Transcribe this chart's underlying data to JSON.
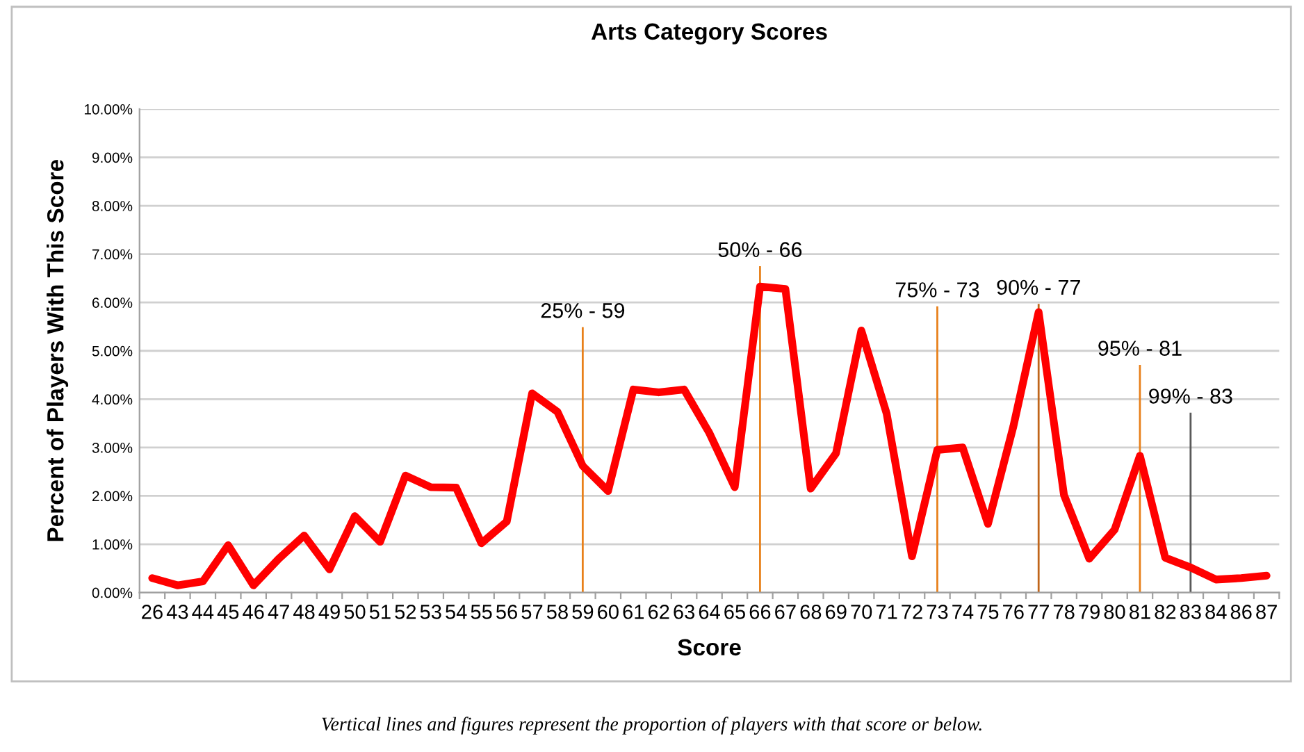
{
  "chart_data": {
    "type": "line",
    "title": "Arts Category Scores",
    "xlabel": "Score",
    "ylabel": "Percent of Players With This Score",
    "categories": [
      "26",
      "43",
      "44",
      "45",
      "46",
      "47",
      "48",
      "49",
      "50",
      "51",
      "52",
      "53",
      "54",
      "55",
      "56",
      "57",
      "58",
      "59",
      "60",
      "61",
      "62",
      "63",
      "64",
      "65",
      "66",
      "67",
      "68",
      "69",
      "70",
      "71",
      "72",
      "73",
      "74",
      "75",
      "76",
      "77",
      "78",
      "79",
      "80",
      "81",
      "82",
      "83",
      "84",
      "86",
      "87"
    ],
    "series": [
      {
        "color": "#ff0000",
        "values": [
          0.3,
          0.15,
          0.23,
          0.98,
          0.15,
          0.7,
          1.18,
          0.48,
          1.58,
          1.05,
          2.42,
          2.18,
          2.17,
          1.02,
          1.47,
          4.12,
          3.74,
          2.62,
          2.1,
          4.2,
          4.14,
          4.2,
          3.3,
          2.18,
          6.33,
          6.28,
          2.15,
          2.88,
          5.42,
          3.7,
          0.75,
          2.95,
          3.0,
          1.42,
          3.43,
          5.8,
          2.02,
          0.7,
          1.3,
          2.83,
          0.72,
          0.52,
          0.27,
          0.3,
          0.35
        ]
      }
    ],
    "ylim": [
      0,
      10
    ],
    "yticks": [
      {
        "value": 0,
        "label": "0.00%"
      },
      {
        "value": 1,
        "label": "1.00%"
      },
      {
        "value": 2,
        "label": "2.00%"
      },
      {
        "value": 3,
        "label": "3.00%"
      },
      {
        "value": 4,
        "label": "4.00%"
      },
      {
        "value": 5,
        "label": "5.00%"
      },
      {
        "value": 6,
        "label": "6.00%"
      },
      {
        "value": 7,
        "label": "7.00%"
      },
      {
        "value": 8,
        "label": "8.00%"
      },
      {
        "value": 9,
        "label": "9.00%"
      },
      {
        "value": 10,
        "label": "10.00%"
      }
    ],
    "grid": "y",
    "marker": "none",
    "line_style": "solid",
    "legend": false,
    "ref_lines": [
      {
        "axis": "x",
        "value": "59",
        "label": "25% - 59",
        "color": "#e8801a"
      },
      {
        "axis": "x",
        "value": "66",
        "label": "50% - 66",
        "color": "#e8801a"
      },
      {
        "axis": "x",
        "value": "73",
        "label": "75% - 73",
        "color": "#e8801a"
      },
      {
        "axis": "x",
        "value": "77",
        "label": "90% - 77",
        "color": "#c0651a"
      },
      {
        "axis": "x",
        "value": "81",
        "label": "95% - 81",
        "color": "#e8801a"
      },
      {
        "axis": "x",
        "value": "83",
        "label": "99% - 83",
        "color": "#595959"
      }
    ],
    "annotations": [
      "Vertical lines and figures represent the proportion of players with that score or below."
    ]
  }
}
